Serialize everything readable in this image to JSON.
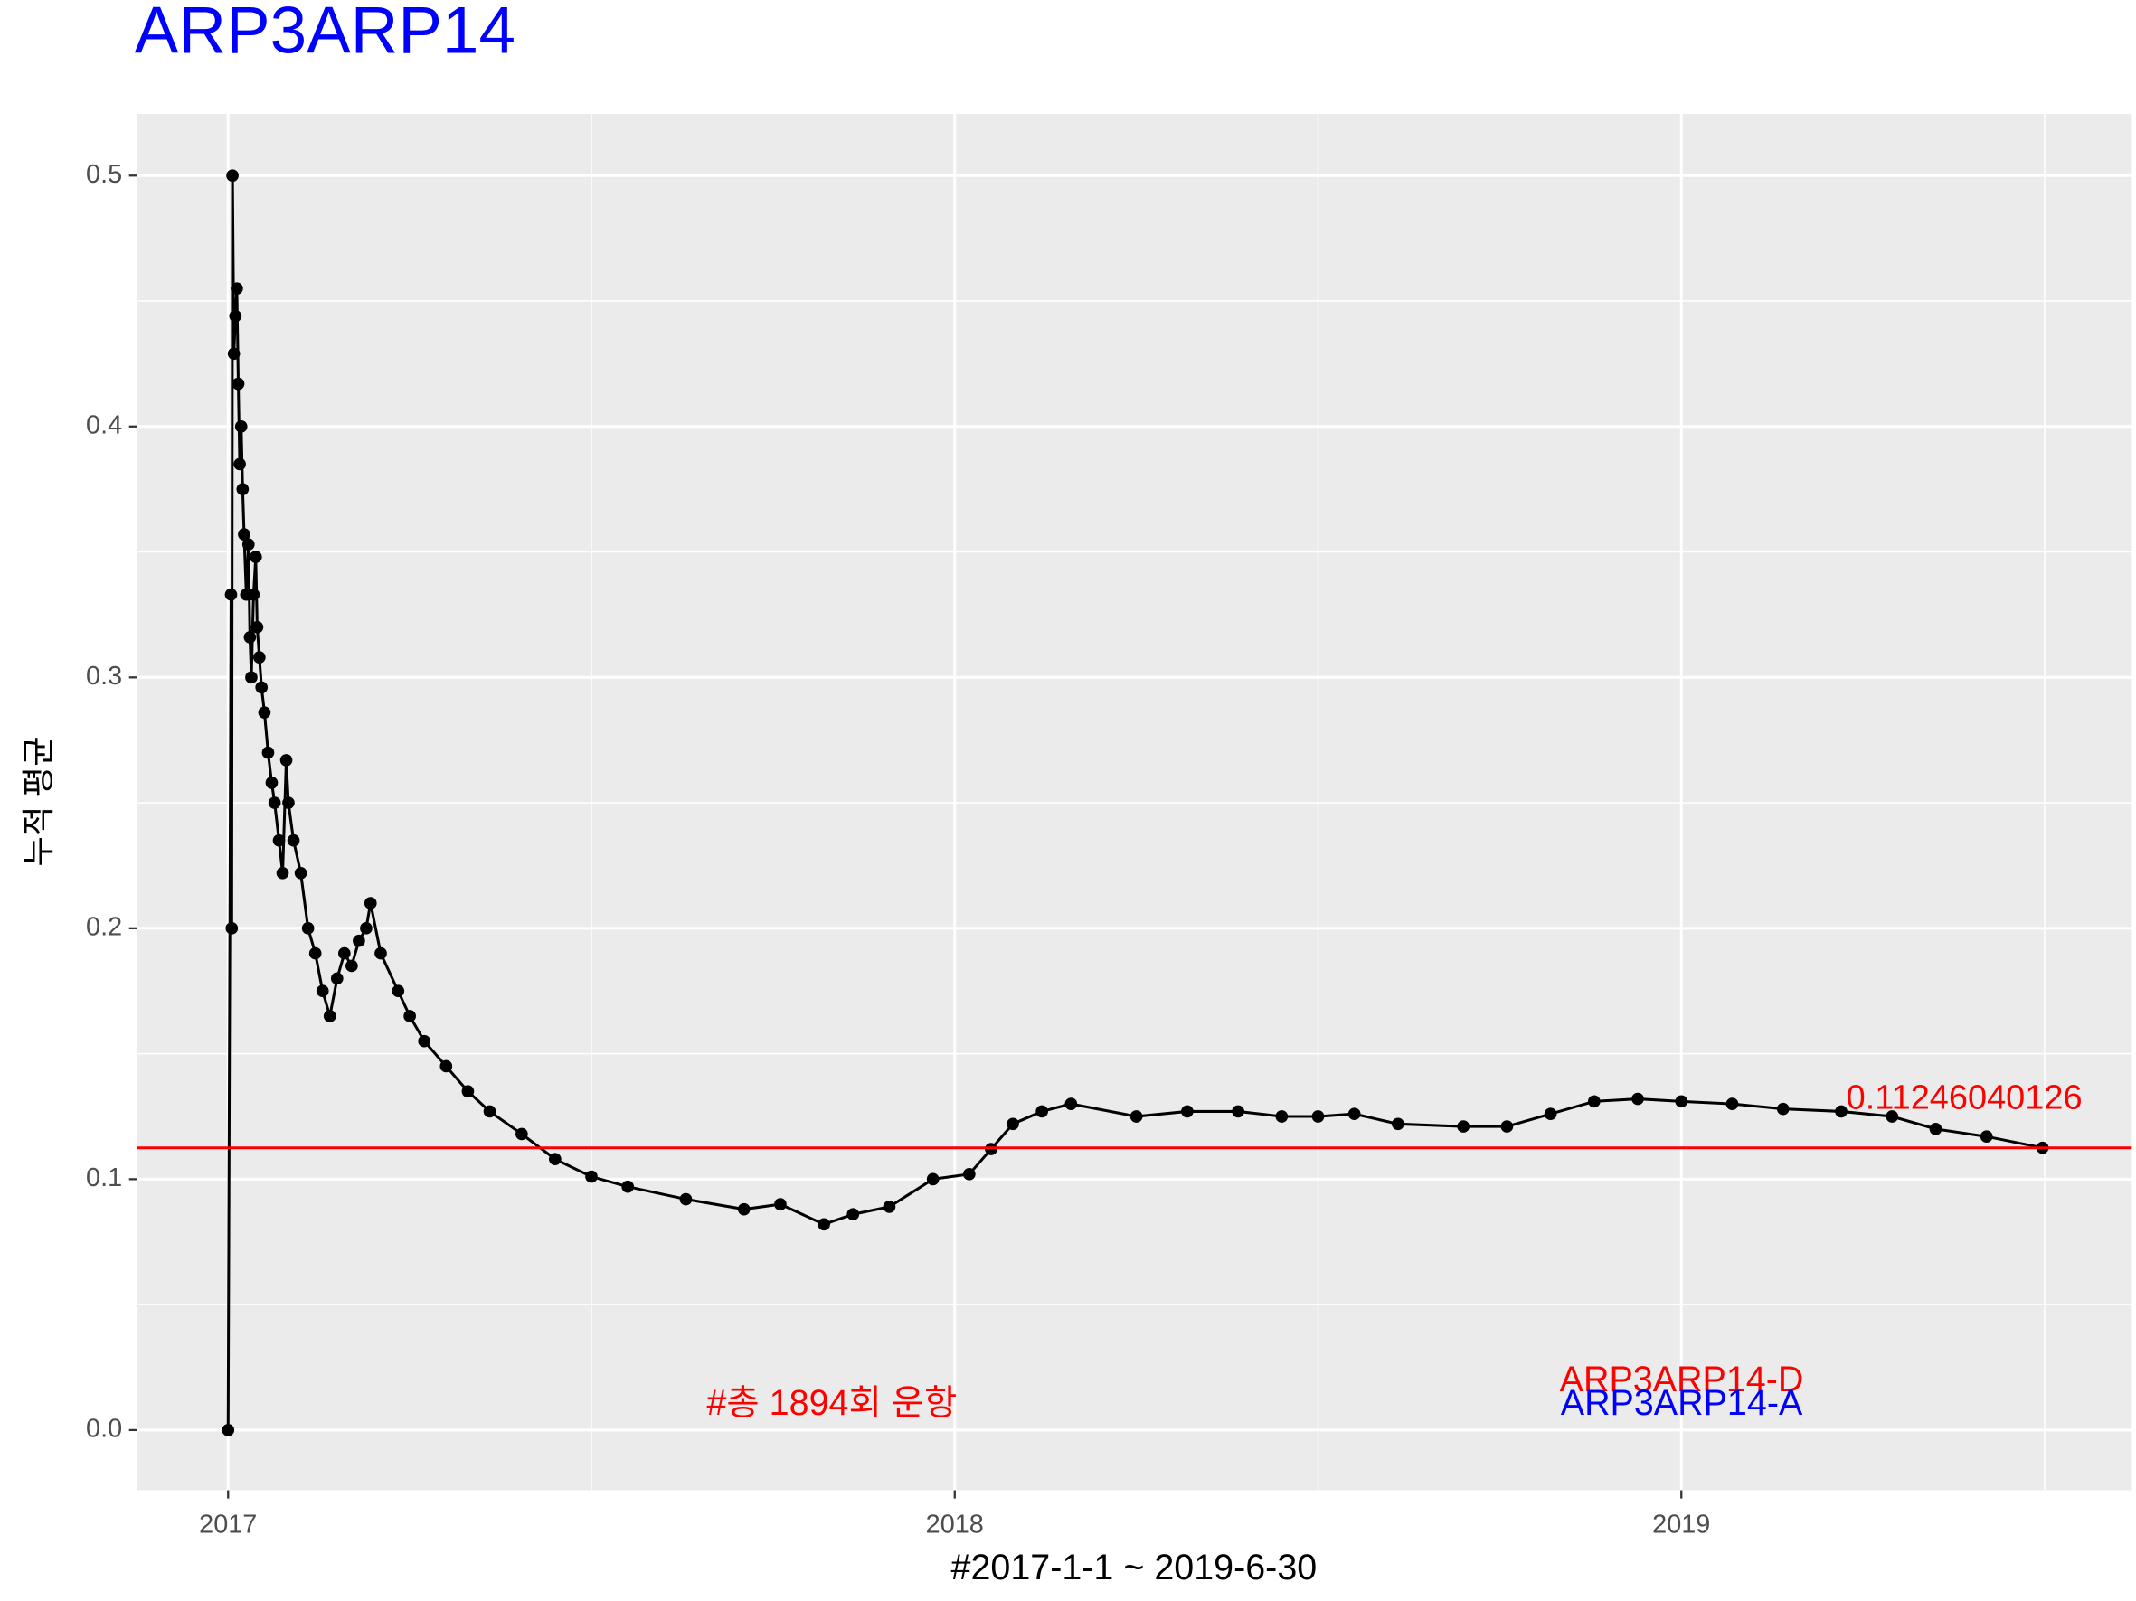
{
  "chart_data": {
    "type": "line",
    "title": "ARP3ARP14",
    "x_label": "#2017-1-1 ~ 2019-6-30",
    "y_label": "누적 평균",
    "color": "#000000",
    "x": [
      2017.0,
      2017.004,
      2017.005,
      2017.006,
      2017.008,
      2017.01,
      2017.012,
      2017.014,
      2017.016,
      2017.018,
      2017.02,
      2017.022,
      2017.025,
      2017.028,
      2017.03,
      2017.032,
      2017.035,
      2017.038,
      2017.04,
      2017.043,
      2017.046,
      2017.05,
      2017.055,
      2017.06,
      2017.064,
      2017.07,
      2017.075,
      2017.08,
      2017.083,
      2017.09,
      2017.1,
      2017.11,
      2017.12,
      2017.13,
      2017.14,
      2017.15,
      2017.16,
      2017.17,
      2017.18,
      2017.19,
      2017.196,
      2017.21,
      2017.234,
      2017.25,
      2017.27,
      2017.3,
      2017.33,
      2017.36,
      2017.404,
      2017.45,
      2017.5,
      2017.55,
      2017.63,
      2017.71,
      2017.76,
      2017.82,
      2017.86,
      2017.91,
      2017.97,
      2018.02,
      2018.05,
      2018.08,
      2018.12,
      2018.16,
      2018.25,
      2018.32,
      2018.39,
      2018.45,
      2018.5,
      2018.55,
      2018.61,
      2018.7,
      2018.76,
      2018.82,
      2018.88,
      2018.94,
      2019.0,
      2019.07,
      2019.14,
      2019.22,
      2019.29,
      2019.35,
      2019.42,
      2019.497
    ],
    "values": [
      0,
      0.333,
      0.2,
      0.5,
      0.429,
      0.444,
      0.455,
      0.417,
      0.385,
      0.4,
      0.375,
      0.357,
      0.333,
      0.353,
      0.316,
      0.3,
      0.333,
      0.348,
      0.32,
      0.308,
      0.296,
      0.286,
      0.27,
      0.258,
      0.25,
      0.235,
      0.222,
      0.267,
      0.25,
      0.235,
      0.222,
      0.2,
      0.19,
      0.175,
      0.165,
      0.18,
      0.19,
      0.185,
      0.195,
      0.2,
      0.21,
      0.19,
      0.175,
      0.165,
      0.155,
      0.145,
      0.135,
      0.127,
      0.118,
      0.108,
      0.101,
      0.097,
      0.092,
      0.088,
      0.09,
      0.082,
      0.086,
      0.089,
      0.1,
      0.102,
      0.112,
      0.122,
      0.127,
      0.13,
      0.125,
      0.127,
      0.127,
      0.125,
      0.125,
      0.126,
      0.122,
      0.121,
      0.121,
      0.126,
      0.131,
      0.132,
      0.131,
      0.13,
      0.128,
      0.127,
      0.125,
      0.12,
      0.117,
      0.1125
    ],
    "xlim": [
      2016.875,
      2019.62
    ],
    "ylim": [
      -0.024,
      0.5246
    ],
    "xticks": [
      2017,
      2018,
      2019
    ],
    "yticks": [
      {
        "value": 0,
        "label": "0.0"
      },
      0.1,
      0.2,
      0.3,
      0.4,
      0.5
    ],
    "grid": true,
    "hline": {
      "value": 0.11246040126,
      "label": "0.11246040126",
      "color": "#ff0000"
    },
    "annotations": [
      {
        "text": "#총 1894회 운항",
        "color": "#ff0000"
      },
      {
        "text": "ARP3ARP14-D",
        "color": "#ff0000"
      },
      {
        "text": "ARP3ARP14-A",
        "color": "#0000ff"
      }
    ]
  }
}
